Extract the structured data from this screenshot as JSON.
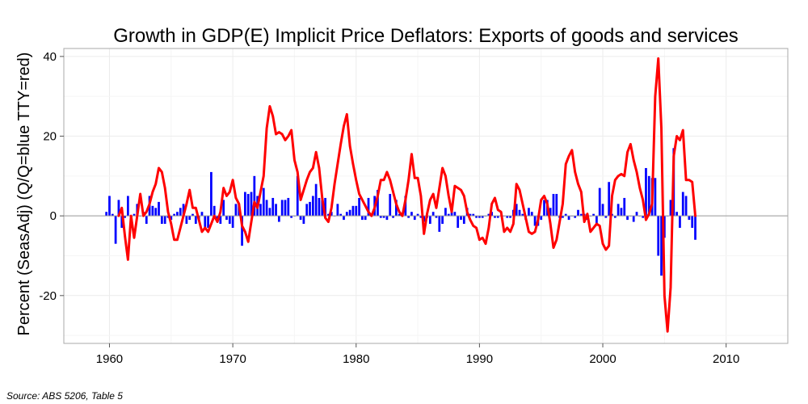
{
  "chart_data": {
    "type": "bar+line",
    "title": "Growth in GDP(E) Implicit Price Deflators: Exports of goods and services",
    "ylabel": "Percent (SeasAdj) (Q/Q=blue TTY=red)",
    "xlabel": "",
    "xlim": [
      1956.3,
      2015.0
    ],
    "ylim": [
      -32,
      42
    ],
    "x_ticks": [
      1960,
      1970,
      1980,
      1990,
      2000,
      2010
    ],
    "x_tick_labels": [
      "1960",
      "1970",
      "1980",
      "1990",
      "2000",
      "2010"
    ],
    "y_ticks": [
      -20,
      0,
      20,
      40
    ],
    "y_tick_labels": [
      "-20",
      "0",
      "20",
      "40"
    ],
    "grid": true,
    "series": [
      {
        "name": "Q/Q",
        "kind": "bar",
        "color": "#0000ff",
        "start_year": 1959.75,
        "step": 0.25,
        "values": [
          1,
          5,
          0.5,
          -7,
          4,
          -3,
          -0.5,
          5,
          -3,
          0.5,
          3,
          0,
          1,
          -2,
          5,
          2.5,
          2,
          3.5,
          -2,
          -2,
          -0.5,
          -1,
          0.5,
          1,
          2,
          3,
          -2,
          -1,
          0.5,
          -2,
          -1,
          1,
          -3,
          -3,
          11,
          2.5,
          -1,
          -2,
          4,
          -1,
          -2,
          -3,
          3,
          3,
          -7.5,
          6,
          5.5,
          6,
          10,
          5,
          3,
          7,
          4,
          2,
          4.5,
          3,
          -1.5,
          4,
          4,
          4.5,
          -0.5,
          0,
          10,
          -1,
          -2,
          3,
          3.5,
          5,
          8,
          4.5,
          4,
          4.5,
          0.5,
          1,
          0,
          3,
          0.5,
          -1,
          1,
          1.5,
          2.5,
          2.5,
          4.5,
          -1,
          -1,
          4.5,
          0,
          5,
          6.5,
          -0.5,
          -0.5,
          -1,
          5.5,
          -0.5,
          4,
          0.5,
          0.5,
          5,
          -0.5,
          1,
          -1,
          0.5,
          -0.5,
          -1.5,
          -0.5,
          -2,
          1,
          -0.5,
          -4,
          -2,
          2,
          0.5,
          2,
          1,
          -3,
          -1,
          -2,
          2,
          0.5,
          0.5,
          -0.5,
          -0.5,
          -0.5,
          0,
          0.5,
          1,
          -0.5,
          -0.5,
          0,
          0,
          -0.5,
          -0.5,
          1.5,
          3,
          1.5,
          0.5,
          -1,
          2,
          1,
          -2.5,
          -2.5,
          -1,
          4,
          4,
          2,
          5.5,
          5.5,
          -0.5,
          -0.5,
          0.5,
          -1,
          0,
          -0.5,
          1.5,
          0.5,
          0.5,
          -1,
          0,
          0.5,
          -2.5,
          7,
          3,
          -0.5,
          8.5,
          0.5,
          -0.5,
          3,
          2,
          4.5,
          -1,
          0,
          -1.5,
          1,
          0,
          -0.5,
          12,
          10,
          9.5,
          9.5,
          -10,
          -15,
          -5.5,
          0,
          4,
          17,
          1,
          -3,
          6,
          5,
          -1,
          -3,
          -6
        ]
      },
      {
        "name": "TTY",
        "kind": "line",
        "color": "#ff0000",
        "points": [
          [
            1960.75,
            0
          ],
          [
            1961,
            2
          ],
          [
            1961.25,
            -5
          ],
          [
            1961.5,
            -11
          ],
          [
            1961.75,
            0
          ],
          [
            1962,
            -5.5
          ],
          [
            1962.25,
            0
          ],
          [
            1962.5,
            5.5
          ],
          [
            1962.75,
            0
          ],
          [
            1963,
            1
          ],
          [
            1963.25,
            3
          ],
          [
            1963.5,
            6
          ],
          [
            1963.75,
            8
          ],
          [
            1964,
            12
          ],
          [
            1964.25,
            11
          ],
          [
            1964.5,
            7
          ],
          [
            1964.75,
            1
          ],
          [
            1965,
            -2
          ],
          [
            1965.25,
            -6
          ],
          [
            1965.5,
            -6
          ],
          [
            1965.75,
            -3
          ],
          [
            1966,
            0
          ],
          [
            1966.25,
            3
          ],
          [
            1966.5,
            6.5
          ],
          [
            1966.75,
            2
          ],
          [
            1967,
            2
          ],
          [
            1967.25,
            -1
          ],
          [
            1967.5,
            -4
          ],
          [
            1967.75,
            -3
          ],
          [
            1968,
            -4
          ],
          [
            1968.25,
            -2
          ],
          [
            1968.5,
            0
          ],
          [
            1968.75,
            -1.5
          ],
          [
            1969,
            1
          ],
          [
            1969.25,
            7
          ],
          [
            1969.5,
            5
          ],
          [
            1969.75,
            6
          ],
          [
            1970,
            9
          ],
          [
            1970.25,
            4.5
          ],
          [
            1970.5,
            3
          ],
          [
            1970.75,
            -2.5
          ],
          [
            1971,
            -4
          ],
          [
            1971.25,
            -6.5
          ],
          [
            1971.5,
            -1.5
          ],
          [
            1971.75,
            3.5
          ],
          [
            1972,
            2
          ],
          [
            1972.25,
            6
          ],
          [
            1972.5,
            10
          ],
          [
            1972.75,
            22
          ],
          [
            1973,
            27.5
          ],
          [
            1973.25,
            25
          ],
          [
            1973.5,
            20.5
          ],
          [
            1973.75,
            21
          ],
          [
            1974,
            20.5
          ],
          [
            1974.25,
            19
          ],
          [
            1974.5,
            20
          ],
          [
            1974.75,
            21.5
          ],
          [
            1975,
            14
          ],
          [
            1975.25,
            11
          ],
          [
            1975.5,
            4
          ],
          [
            1975.75,
            6.5
          ],
          [
            1976,
            9
          ],
          [
            1976.25,
            11
          ],
          [
            1976.5,
            12
          ],
          [
            1976.75,
            16
          ],
          [
            1977,
            12
          ],
          [
            1977.25,
            4.5
          ],
          [
            1977.5,
            -0.5
          ],
          [
            1977.75,
            -1.5
          ],
          [
            1978,
            2
          ],
          [
            1978.25,
            8
          ],
          [
            1978.5,
            13
          ],
          [
            1978.75,
            18
          ],
          [
            1979,
            22.5
          ],
          [
            1979.25,
            25.5
          ],
          [
            1979.5,
            17.5
          ],
          [
            1979.75,
            13
          ],
          [
            1980,
            9
          ],
          [
            1980.25,
            5.5
          ],
          [
            1980.5,
            4
          ],
          [
            1980.75,
            2.5
          ],
          [
            1981,
            1
          ],
          [
            1981.25,
            0
          ],
          [
            1981.5,
            2
          ],
          [
            1981.75,
            5
          ],
          [
            1982,
            9
          ],
          [
            1982.25,
            9
          ],
          [
            1982.5,
            11
          ],
          [
            1982.75,
            9
          ],
          [
            1983,
            6
          ],
          [
            1983.25,
            3
          ],
          [
            1983.5,
            1
          ],
          [
            1983.75,
            0
          ],
          [
            1984,
            4
          ],
          [
            1984.25,
            9
          ],
          [
            1984.5,
            15.5
          ],
          [
            1984.75,
            9.5
          ],
          [
            1985,
            9.5
          ],
          [
            1985.25,
            5
          ],
          [
            1985.5,
            -4.5
          ],
          [
            1985.75,
            0.5
          ],
          [
            1986,
            4
          ],
          [
            1986.25,
            5.5
          ],
          [
            1986.5,
            2
          ],
          [
            1986.75,
            7
          ],
          [
            1987,
            12
          ],
          [
            1987.25,
            10
          ],
          [
            1987.5,
            5
          ],
          [
            1987.75,
            1
          ],
          [
            1988,
            7.5
          ],
          [
            1988.25,
            7
          ],
          [
            1988.5,
            6.5
          ],
          [
            1988.75,
            5
          ],
          [
            1989,
            1
          ],
          [
            1989.25,
            -1
          ],
          [
            1989.5,
            -2.5
          ],
          [
            1989.75,
            -3
          ],
          [
            1990,
            -6
          ],
          [
            1990.25,
            -5.5
          ],
          [
            1990.5,
            -7
          ],
          [
            1990.75,
            -3
          ],
          [
            1991,
            3
          ],
          [
            1991.25,
            4.5
          ],
          [
            1991.5,
            1.5
          ],
          [
            1991.75,
            1
          ],
          [
            1992,
            -4
          ],
          [
            1992.25,
            -3
          ],
          [
            1992.5,
            -4
          ],
          [
            1992.75,
            -2
          ],
          [
            1993,
            8
          ],
          [
            1993.25,
            6.5
          ],
          [
            1993.5,
            3
          ],
          [
            1993.75,
            -0.5
          ],
          [
            1994,
            -4
          ],
          [
            1994.25,
            -4.5
          ],
          [
            1994.5,
            -4
          ],
          [
            1994.75,
            -1
          ],
          [
            1995,
            4
          ],
          [
            1995.25,
            5
          ],
          [
            1995.5,
            3
          ],
          [
            1995.75,
            -2
          ],
          [
            1996,
            -8
          ],
          [
            1996.25,
            -6
          ],
          [
            1996.5,
            -1.5
          ],
          [
            1996.75,
            3
          ],
          [
            1997,
            13
          ],
          [
            1997.25,
            15
          ],
          [
            1997.5,
            16.5
          ],
          [
            1997.75,
            11
          ],
          [
            1998,
            8
          ],
          [
            1998.25,
            6
          ],
          [
            1998.5,
            -1.5
          ],
          [
            1998.75,
            0.5
          ],
          [
            1999,
            -4
          ],
          [
            1999.25,
            -3
          ],
          [
            1999.5,
            -2
          ],
          [
            1999.75,
            -2.5
          ],
          [
            2000,
            -7
          ],
          [
            2000.25,
            -8.5
          ],
          [
            2000.5,
            -7.5
          ],
          [
            2000.75,
            5
          ],
          [
            2001,
            9
          ],
          [
            2001.25,
            10
          ],
          [
            2001.5,
            10.5
          ],
          [
            2001.75,
            10
          ],
          [
            2002,
            16
          ],
          [
            2002.25,
            18
          ],
          [
            2002.5,
            14
          ],
          [
            2002.75,
            11
          ],
          [
            2003,
            7
          ],
          [
            2003.25,
            4
          ],
          [
            2003.5,
            -1
          ],
          [
            2003.75,
            0.5
          ],
          [
            2004,
            3
          ],
          [
            2004.25,
            30
          ],
          [
            2004.5,
            39.5
          ],
          [
            2004.75,
            22
          ],
          [
            2005,
            -20
          ],
          [
            2005.25,
            -29
          ],
          [
            2005.5,
            -18
          ],
          [
            2005.75,
            15
          ],
          [
            2006,
            20
          ],
          [
            2006.25,
            19
          ],
          [
            2006.5,
            21.5
          ],
          [
            2006.75,
            9
          ],
          [
            2007,
            9
          ],
          [
            2007.25,
            8.5
          ],
          [
            2007.5,
            0
          ]
        ]
      }
    ]
  },
  "source_note": "Source: ABS 5206, Table 5"
}
